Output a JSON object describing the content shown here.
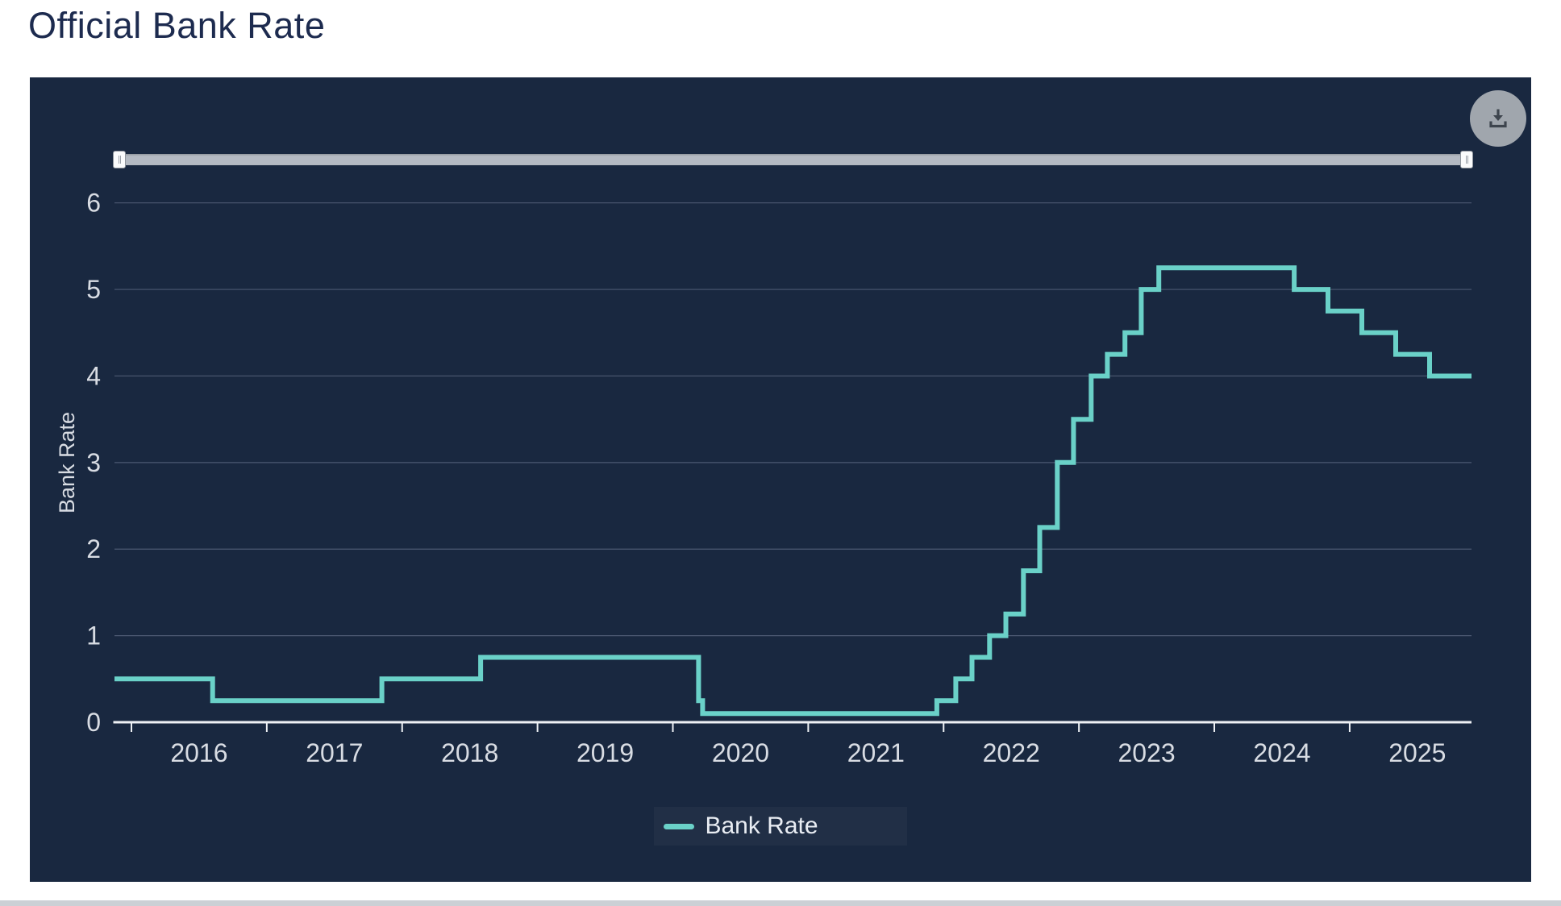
{
  "title": "Official Bank Rate",
  "icons": {
    "download_button": "download-arrow-into-tray"
  },
  "colors": {
    "panel_background": "#192840",
    "series_teal": "#6ad1c8",
    "title_navy": "#1d2b4f",
    "axis_text": "#d8dce3",
    "axis_line": "#eef1f5",
    "gridline": "#76819a",
    "slider_track": "#b4bac3",
    "download_button_gray": "#a0a6ad",
    "download_icon_gray": "#3e454e"
  },
  "chart_data": {
    "type": "line",
    "line_style": "step-after",
    "title": "Official Bank Rate",
    "xlabel": "",
    "ylabel": "Bank Rate",
    "xlim": [
      2015.875,
      2025.9
    ],
    "ylim": [
      0,
      6.5
    ],
    "y_ticks": [
      0,
      1,
      2,
      3,
      4,
      5,
      6
    ],
    "x_tick_years": [
      2016,
      2017,
      2018,
      2019,
      2020,
      2021,
      2022,
      2023,
      2024,
      2025
    ],
    "grid": "horizontal-only",
    "legend_position": "bottom-center",
    "series": [
      {
        "name": "Bank Rate",
        "color": "#6ad1c8",
        "steps": [
          {
            "x": 2015.875,
            "rate": 0.5
          },
          {
            "x": 2016.6,
            "rate": 0.25
          },
          {
            "x": 2017.85,
            "rate": 0.5
          },
          {
            "x": 2018.58,
            "rate": 0.75
          },
          {
            "x": 2020.19,
            "rate": 0.25
          },
          {
            "x": 2020.22,
            "rate": 0.1
          },
          {
            "x": 2021.95,
            "rate": 0.25
          },
          {
            "x": 2022.09,
            "rate": 0.5
          },
          {
            "x": 2022.21,
            "rate": 0.75
          },
          {
            "x": 2022.34,
            "rate": 1.0
          },
          {
            "x": 2022.46,
            "rate": 1.25
          },
          {
            "x": 2022.59,
            "rate": 1.75
          },
          {
            "x": 2022.71,
            "rate": 2.25
          },
          {
            "x": 2022.84,
            "rate": 3.0
          },
          {
            "x": 2022.96,
            "rate": 3.5
          },
          {
            "x": 2023.09,
            "rate": 4.0
          },
          {
            "x": 2023.21,
            "rate": 4.25
          },
          {
            "x": 2023.34,
            "rate": 4.5
          },
          {
            "x": 2023.46,
            "rate": 5.0
          },
          {
            "x": 2023.59,
            "rate": 5.25
          },
          {
            "x": 2024.59,
            "rate": 5.0
          },
          {
            "x": 2024.84,
            "rate": 4.75
          },
          {
            "x": 2025.09,
            "rate": 4.5
          },
          {
            "x": 2025.34,
            "rate": 4.25
          },
          {
            "x": 2025.59,
            "rate": 4.0
          }
        ],
        "x_end": 2025.9
      }
    ]
  }
}
